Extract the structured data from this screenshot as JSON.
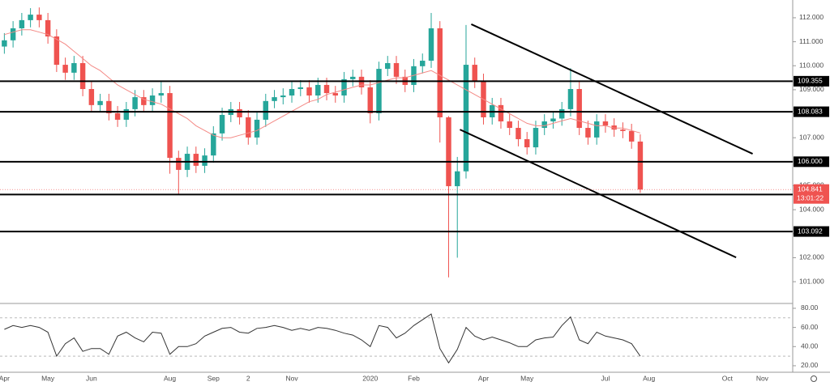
{
  "chart_data": {
    "type": "candlestick",
    "categories": [
      "Apr",
      null,
      null,
      null,
      null,
      "May",
      null,
      null,
      null,
      null,
      "Jun",
      null,
      null,
      null,
      null,
      null,
      null,
      null,
      null,
      "Aug",
      null,
      null,
      null,
      null,
      "Sep",
      null,
      null,
      null,
      "2",
      null,
      null,
      null,
      null,
      "Nov",
      null,
      null,
      null,
      null,
      null,
      null,
      null,
      null,
      "2020",
      null,
      null,
      null,
      null,
      "Feb",
      null,
      null,
      null,
      null,
      null,
      null,
      null,
      "Apr",
      null,
      null,
      null,
      null,
      "May",
      null,
      null,
      null,
      null,
      null,
      null,
      null,
      null,
      "Jul",
      null,
      null,
      null,
      null,
      "Aug",
      null,
      null,
      null,
      null,
      null,
      null,
      null,
      null,
      "Oct",
      null,
      null,
      null,
      "Nov",
      null,
      null,
      null
    ],
    "open": [
      110.8,
      111.06,
      111.56,
      111.9,
      112.13,
      111.9,
      111.22,
      110.04,
      109.71,
      110.11,
      109.03,
      108.36,
      108.53,
      108.02,
      107.75,
      108.19,
      108.69,
      108.36,
      108.76,
      108.86,
      106.16,
      105.66,
      106.33,
      105.83,
      106.26,
      107.18,
      107.95,
      108.19,
      107.85,
      107.01,
      107.75,
      108.53,
      108.69,
      108.76,
      109.03,
      109.1,
      108.76,
      109.2,
      108.86,
      108.76,
      109.44,
      109.54,
      109.1,
      108.02,
      109.87,
      110.11,
      109.54,
      109.2,
      109.98,
      110.21,
      111.56,
      107.85,
      104.98,
      105.6,
      110.04,
      109.37,
      107.85,
      108.36,
      107.68,
      107.41,
      106.94,
      106.6,
      107.41,
      107.68,
      107.8,
      108.19,
      109.03,
      107.41,
      107.01,
      107.68,
      107.51,
      107.34,
      107.28,
      106.84,
      null,
      null,
      null,
      null,
      null,
      null,
      null,
      null,
      null,
      null,
      null,
      null,
      null,
      null,
      null,
      null,
      null
    ],
    "high": [
      111.36,
      111.86,
      112.2,
      112.4,
      112.43,
      112.2,
      111.52,
      110.34,
      110.41,
      110.41,
      109.33,
      108.83,
      108.83,
      108.32,
      108.49,
      108.99,
      108.99,
      109.06,
      109.35,
      109.16,
      106.46,
      106.63,
      106.63,
      106.56,
      107.48,
      108.25,
      108.49,
      108.49,
      108.15,
      108.05,
      108.83,
      108.99,
      109.06,
      109.33,
      109.4,
      109.4,
      109.5,
      109.5,
      109.16,
      109.74,
      109.84,
      109.84,
      109.4,
      110.17,
      110.41,
      110.41,
      109.84,
      110.28,
      110.51,
      112.2,
      111.86,
      107.9,
      106.2,
      111.7,
      110.34,
      109.67,
      108.66,
      108.66,
      107.98,
      107.71,
      107.24,
      107.71,
      107.98,
      108.1,
      108.49,
      109.9,
      109.33,
      107.71,
      107.98,
      107.98,
      107.81,
      107.64,
      107.58,
      107.14,
      null,
      null,
      null,
      null,
      null,
      null,
      null,
      null,
      null,
      null,
      null,
      null,
      null,
      null,
      null,
      null,
      null
    ],
    "low": [
      110.5,
      110.76,
      111.26,
      111.6,
      111.6,
      110.92,
      109.74,
      109.41,
      109.41,
      108.73,
      108.06,
      108.06,
      107.72,
      107.45,
      107.45,
      107.89,
      108.06,
      108.06,
      108.46,
      105.5,
      104.65,
      105.36,
      105.53,
      105.53,
      105.96,
      106.88,
      107.65,
      107.55,
      106.71,
      106.71,
      107.45,
      108.23,
      108.39,
      108.46,
      108.73,
      108.46,
      108.46,
      108.56,
      108.46,
      108.46,
      109.14,
      108.8,
      107.6,
      107.72,
      109.57,
      109.24,
      108.9,
      108.9,
      109.68,
      109.91,
      106.8,
      101.18,
      102.0,
      105.3,
      109.07,
      107.55,
      107.55,
      107.38,
      107.11,
      106.64,
      106.3,
      106.3,
      107.11,
      107.38,
      107.5,
      107.89,
      107.11,
      106.71,
      106.71,
      107.21,
      107.04,
      106.98,
      106.54,
      104.7,
      null,
      null,
      null,
      null,
      null,
      null,
      null,
      null,
      null,
      null,
      null,
      null,
      null,
      null,
      null,
      null,
      null
    ],
    "close": [
      111.06,
      111.56,
      111.9,
      112.13,
      111.9,
      111.22,
      110.04,
      109.71,
      110.11,
      109.03,
      108.36,
      108.53,
      108.02,
      107.75,
      108.19,
      108.69,
      108.36,
      108.76,
      108.86,
      106.16,
      105.66,
      106.33,
      105.83,
      106.26,
      107.18,
      107.95,
      108.19,
      107.85,
      107.01,
      107.75,
      108.53,
      108.69,
      108.76,
      109.03,
      109.1,
      108.76,
      109.2,
      108.86,
      108.76,
      109.44,
      109.54,
      109.1,
      108.02,
      109.87,
      110.11,
      109.54,
      109.2,
      109.98,
      110.21,
      111.56,
      107.85,
      104.98,
      105.6,
      110.04,
      109.37,
      107.85,
      108.36,
      107.68,
      107.41,
      106.94,
      106.6,
      107.41,
      107.68,
      107.8,
      108.19,
      109.03,
      107.41,
      107.01,
      107.68,
      107.51,
      107.34,
      107.28,
      106.84,
      104.84,
      null,
      null,
      null,
      null,
      null,
      null,
      null,
      null,
      null,
      null,
      null,
      null,
      null,
      null,
      null,
      null,
      null
    ],
    "up_color": "#26a69a",
    "down_color": "#ef5350",
    "ma": {
      "color": "#f48a86",
      "values": [
        111.3,
        111.4,
        111.5,
        111.5,
        111.4,
        111.3,
        111.1,
        110.9,
        110.6,
        110.3,
        110.0,
        109.8,
        109.5,
        109.2,
        109.0,
        108.8,
        108.6,
        108.5,
        108.4,
        108.2,
        108.0,
        107.8,
        107.5,
        107.3,
        107.1,
        107.0,
        107.0,
        107.1,
        107.2,
        107.3,
        107.5,
        107.7,
        107.9,
        108.1,
        108.3,
        108.5,
        108.6,
        108.8,
        108.9,
        109.0,
        109.1,
        109.2,
        109.2,
        109.3,
        109.4,
        109.5,
        109.5,
        109.6,
        109.7,
        109.8,
        109.6,
        109.4,
        109.2,
        109.0,
        108.8,
        108.6,
        108.4,
        108.2,
        108.0,
        107.8,
        107.6,
        107.5,
        107.5,
        107.6,
        107.7,
        107.8,
        107.7,
        107.6,
        107.5,
        107.5,
        107.4,
        107.4,
        107.3,
        107.2,
        null,
        null,
        null,
        null,
        null,
        null,
        null,
        null,
        null,
        null,
        null,
        null,
        null,
        null,
        null,
        null,
        null
      ]
    },
    "ylim": [
      100.16,
      112.74
    ],
    "yticks": [
      {
        "value": 101,
        "label": "101.000"
      },
      {
        "value": 102,
        "label": "102.000"
      },
      {
        "value": 103,
        "label": "103.000"
      },
      {
        "value": 104,
        "label": "104.000"
      },
      {
        "value": 105,
        "label": "105.000"
      },
      {
        "value": 106,
        "label": "106.000"
      },
      {
        "value": 107,
        "label": "107.000"
      },
      {
        "value": 108,
        "label": "108.000"
      },
      {
        "value": 109,
        "label": "109.000"
      },
      {
        "value": 110,
        "label": "110.000"
      },
      {
        "value": 111,
        "label": "111.000"
      },
      {
        "value": 112,
        "label": "112.000"
      }
    ],
    "levels": [
      109.355,
      108.083,
      {
        "value": 106,
        "label": "106.000"
      },
      104.631,
      103.092
    ],
    "level_color": "#000000",
    "last_price": {
      "value": 104.841,
      "countdown": "13:01:22",
      "color": "#ef5350"
    },
    "trendlines": [
      [
        [
          53.6,
          111.73
        ],
        [
          85.9,
          106.33
        ]
      ],
      [
        [
          52.3,
          107.34
        ],
        [
          84.0,
          102.01
        ]
      ]
    ],
    "rsi": {
      "type": "line",
      "color": "#333333",
      "values": [
        58,
        62,
        60,
        62,
        60,
        55,
        30,
        43,
        49,
        35,
        38,
        38,
        32,
        51,
        55,
        49,
        45,
        55,
        54,
        32,
        40,
        40,
        43,
        51,
        55,
        59,
        60,
        55,
        54,
        59,
        60,
        62,
        60,
        57,
        59,
        57,
        60,
        59,
        57,
        54,
        52,
        47,
        40,
        62,
        60,
        49,
        54,
        62,
        68,
        74,
        38,
        23,
        37,
        60,
        51,
        47,
        50,
        47,
        44,
        40,
        40,
        47,
        49,
        50,
        62,
        71,
        47,
        43,
        55,
        51,
        49,
        47,
        43,
        30,
        null,
        null,
        null,
        null,
        null,
        null,
        null,
        null,
        null,
        null,
        null,
        null,
        null,
        null,
        null,
        null,
        null
      ],
      "ylim": [
        13.2,
        84.2
      ],
      "yticks": [
        {
          "value": 20,
          "label": "20.00"
        },
        {
          "value": 40,
          "label": "40.00"
        },
        {
          "value": 60,
          "label": "60.00"
        },
        {
          "value": 80,
          "label": "80.00"
        }
      ],
      "levels": [
        70,
        30
      ]
    }
  }
}
